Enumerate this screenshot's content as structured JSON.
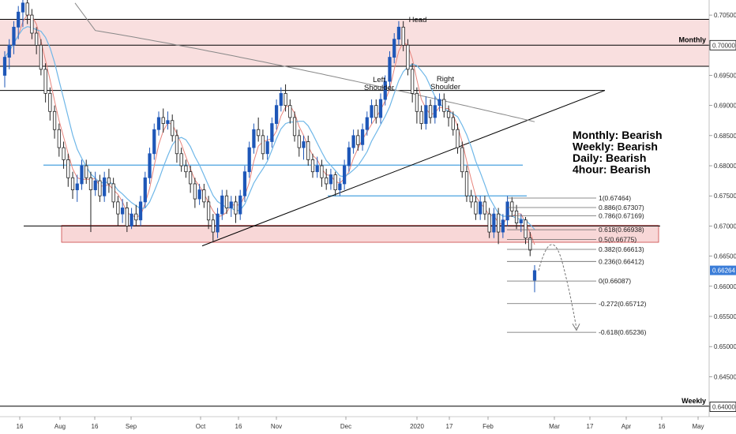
{
  "chart_data": {
    "type": "candlestick",
    "y_axis": {
      "ticks": [
        "0.70500",
        "0.70000",
        "0.69500",
        "0.69000",
        "0.68500",
        "0.68000",
        "0.67500",
        "0.67000",
        "0.66500",
        "0.66000",
        "0.65500",
        "0.65000",
        "0.64500",
        "0.64000"
      ],
      "range": [
        0.6385,
        0.7075
      ]
    },
    "x_axis": {
      "ticks": [
        "16",
        "Aug",
        "16",
        "Sep",
        "Oct",
        "16",
        "Nov",
        "Dec",
        "2020",
        "17",
        "Feb",
        "Mar",
        "17",
        "Apr",
        "16",
        "May"
      ]
    },
    "price_tag": "0.66264",
    "zones": [
      {
        "label": "Monthly",
        "price": 0.7,
        "band": [
          0.6965,
          0.7043
        ]
      },
      {
        "label": "Weekly",
        "price": 0.6401
      }
    ],
    "horizontal_levels": [
      {
        "price": 0.6925,
        "style": "black"
      },
      {
        "price": 0.6801,
        "style": "blue"
      },
      {
        "price": 0.675,
        "style": "blue"
      },
      {
        "price": 0.67,
        "style": "black",
        "band": [
          0.6673,
          0.6701
        ]
      }
    ],
    "fibonacci": [
      {
        "label": "1(0.67464)",
        "price": 0.67464
      },
      {
        "label": "0.886(0.67307)",
        "price": 0.67307
      },
      {
        "label": "0.786(0.67169)",
        "price": 0.67169
      },
      {
        "label": "0.618(0.66938)",
        "price": 0.66938
      },
      {
        "label": "0.5(0.66775)",
        "price": 0.66775
      },
      {
        "label": "0.382(0.66613)",
        "price": 0.66613
      },
      {
        "label": "0.236(0.66412)",
        "price": 0.66412
      },
      {
        "label": "0(0.66087)",
        "price": 0.66087
      },
      {
        "label": "-0.272(0.65712)",
        "price": 0.65712
      },
      {
        "label": "-0.618(0.65236)",
        "price": 0.65236
      }
    ],
    "annotations": [
      "Head",
      "Left Shoulder",
      "Right Shoulder"
    ],
    "summary": [
      "Monthly: Bearish",
      "Weekly: Bearish",
      "Daily: Bearish",
      "4hour: Bearish"
    ],
    "candles": [
      [
        0.695,
        0.698,
        0.693,
        0.699
      ],
      [
        0.698,
        0.7,
        0.696,
        0.701
      ],
      [
        0.7,
        0.703,
        0.6985,
        0.704
      ],
      [
        0.703,
        0.7055,
        0.701,
        0.7065
      ],
      [
        0.7055,
        0.707,
        0.703,
        0.708
      ],
      [
        0.707,
        0.705,
        0.7035,
        0.708
      ],
      [
        0.705,
        0.702,
        0.701,
        0.706
      ],
      [
        0.702,
        0.7,
        0.6985,
        0.703
      ],
      [
        0.7,
        0.696,
        0.695,
        0.701
      ],
      [
        0.696,
        0.692,
        0.6905,
        0.697
      ],
      [
        0.692,
        0.689,
        0.6875,
        0.693
      ],
      [
        0.689,
        0.686,
        0.6845,
        0.69
      ],
      [
        0.686,
        0.683,
        0.6815,
        0.687
      ],
      [
        0.683,
        0.681,
        0.6795,
        0.684
      ],
      [
        0.681,
        0.678,
        0.6765,
        0.682
      ],
      [
        0.678,
        0.676,
        0.6745,
        0.679
      ],
      [
        0.676,
        0.677,
        0.674,
        0.6785
      ],
      [
        0.677,
        0.68,
        0.676,
        0.681
      ],
      [
        0.68,
        0.678,
        0.677,
        0.681
      ],
      [
        0.678,
        0.676,
        0.669,
        0.679
      ],
      [
        0.676,
        0.6775,
        0.675,
        0.679
      ],
      [
        0.6775,
        0.675,
        0.674,
        0.6785
      ],
      [
        0.675,
        0.678,
        0.674,
        0.679
      ],
      [
        0.678,
        0.677,
        0.6755,
        0.6795
      ],
      [
        0.677,
        0.674,
        0.673,
        0.678
      ],
      [
        0.674,
        0.672,
        0.67,
        0.675
      ],
      [
        0.672,
        0.673,
        0.6705,
        0.6745
      ],
      [
        0.673,
        0.67,
        0.669,
        0.674
      ],
      [
        0.67,
        0.672,
        0.6695,
        0.673
      ],
      [
        0.672,
        0.671,
        0.67,
        0.6735
      ],
      [
        0.671,
        0.674,
        0.67,
        0.675
      ],
      [
        0.674,
        0.678,
        0.673,
        0.679
      ],
      [
        0.678,
        0.682,
        0.677,
        0.683
      ],
      [
        0.682,
        0.686,
        0.681,
        0.687
      ],
      [
        0.686,
        0.688,
        0.685,
        0.689
      ],
      [
        0.688,
        0.687,
        0.6855,
        0.6895
      ],
      [
        0.687,
        0.6875,
        0.686,
        0.689
      ],
      [
        0.6875,
        0.685,
        0.684,
        0.6885
      ],
      [
        0.685,
        0.682,
        0.6805,
        0.686
      ],
      [
        0.682,
        0.68,
        0.679,
        0.683
      ],
      [
        0.68,
        0.679,
        0.678,
        0.681
      ],
      [
        0.679,
        0.677,
        0.6755,
        0.68
      ],
      [
        0.677,
        0.6745,
        0.673,
        0.678
      ],
      [
        0.6745,
        0.676,
        0.6735,
        0.677
      ],
      [
        0.676,
        0.674,
        0.673,
        0.677
      ],
      [
        0.674,
        0.671,
        0.6695,
        0.675
      ],
      [
        0.671,
        0.669,
        0.6675,
        0.672
      ],
      [
        0.669,
        0.672,
        0.668,
        0.673
      ],
      [
        0.672,
        0.675,
        0.671,
        0.676
      ],
      [
        0.675,
        0.673,
        0.672,
        0.676
      ],
      [
        0.673,
        0.674,
        0.6715,
        0.675
      ],
      [
        0.674,
        0.672,
        0.6705,
        0.675
      ],
      [
        0.672,
        0.675,
        0.671,
        0.676
      ],
      [
        0.675,
        0.679,
        0.674,
        0.68
      ],
      [
        0.679,
        0.683,
        0.678,
        0.684
      ],
      [
        0.683,
        0.686,
        0.682,
        0.687
      ],
      [
        0.686,
        0.685,
        0.684,
        0.688
      ],
      [
        0.685,
        0.682,
        0.681,
        0.686
      ],
      [
        0.682,
        0.684,
        0.681,
        0.685
      ],
      [
        0.684,
        0.687,
        0.683,
        0.688
      ],
      [
        0.687,
        0.69,
        0.686,
        0.691
      ],
      [
        0.69,
        0.692,
        0.689,
        0.693
      ],
      [
        0.692,
        0.69,
        0.689,
        0.6935
      ],
      [
        0.69,
        0.688,
        0.687,
        0.691
      ],
      [
        0.688,
        0.685,
        0.684,
        0.689
      ],
      [
        0.685,
        0.683,
        0.6815,
        0.686
      ],
      [
        0.683,
        0.684,
        0.681,
        0.685
      ],
      [
        0.684,
        0.681,
        0.68,
        0.685
      ],
      [
        0.681,
        0.679,
        0.678,
        0.682
      ],
      [
        0.679,
        0.68,
        0.678,
        0.6815
      ],
      [
        0.68,
        0.678,
        0.6765,
        0.681
      ],
      [
        0.678,
        0.677,
        0.676,
        0.6795
      ],
      [
        0.677,
        0.6785,
        0.676,
        0.6795
      ],
      [
        0.6785,
        0.676,
        0.675,
        0.679
      ],
      [
        0.676,
        0.677,
        0.675,
        0.678
      ],
      [
        0.677,
        0.68,
        0.676,
        0.681
      ],
      [
        0.68,
        0.683,
        0.679,
        0.684
      ],
      [
        0.683,
        0.685,
        0.682,
        0.686
      ],
      [
        0.685,
        0.6835,
        0.6825,
        0.686
      ],
      [
        0.6835,
        0.686,
        0.6825,
        0.687
      ],
      [
        0.686,
        0.688,
        0.685,
        0.689
      ],
      [
        0.688,
        0.69,
        0.687,
        0.691
      ],
      [
        0.69,
        0.688,
        0.687,
        0.691
      ],
      [
        0.688,
        0.691,
        0.687,
        0.692
      ],
      [
        0.691,
        0.694,
        0.69,
        0.695
      ],
      [
        0.694,
        0.698,
        0.693,
        0.699
      ],
      [
        0.698,
        0.701,
        0.697,
        0.702
      ],
      [
        0.701,
        0.703,
        0.7,
        0.704
      ],
      [
        0.703,
        0.7,
        0.699,
        0.704
      ],
      [
        0.7,
        0.696,
        0.695,
        0.701
      ],
      [
        0.696,
        0.692,
        0.6905,
        0.697
      ],
      [
        0.692,
        0.689,
        0.687,
        0.693
      ],
      [
        0.689,
        0.687,
        0.686,
        0.69
      ],
      [
        0.687,
        0.69,
        0.686,
        0.6915
      ],
      [
        0.69,
        0.688,
        0.687,
        0.691
      ],
      [
        0.688,
        0.69,
        0.687,
        0.6915
      ],
      [
        0.69,
        0.691,
        0.689,
        0.692
      ],
      [
        0.691,
        0.689,
        0.688,
        0.692
      ],
      [
        0.689,
        0.688,
        0.6865,
        0.69
      ],
      [
        0.688,
        0.686,
        0.685,
        0.689
      ],
      [
        0.686,
        0.683,
        0.682,
        0.687
      ],
      [
        0.683,
        0.679,
        0.678,
        0.684
      ],
      [
        0.679,
        0.675,
        0.674,
        0.68
      ],
      [
        0.675,
        0.674,
        0.673,
        0.676
      ],
      [
        0.674,
        0.672,
        0.671,
        0.675
      ],
      [
        0.672,
        0.674,
        0.671,
        0.675
      ],
      [
        0.674,
        0.672,
        0.671,
        0.675
      ],
      [
        0.672,
        0.669,
        0.668,
        0.673
      ],
      [
        0.669,
        0.672,
        0.668,
        0.673
      ],
      [
        0.672,
        0.669,
        0.667,
        0.673
      ],
      [
        0.669,
        0.671,
        0.668,
        0.672
      ],
      [
        0.671,
        0.674,
        0.67,
        0.675
      ],
      [
        0.674,
        0.6725,
        0.6715,
        0.6748
      ],
      [
        0.6725,
        0.6705,
        0.6695,
        0.6735
      ],
      [
        0.6705,
        0.671,
        0.669,
        0.672
      ],
      [
        0.671,
        0.668,
        0.667,
        0.6715
      ],
      [
        0.668,
        0.666,
        0.665,
        0.669
      ],
      [
        0.661,
        0.6626,
        0.659,
        0.6635
      ]
    ]
  }
}
